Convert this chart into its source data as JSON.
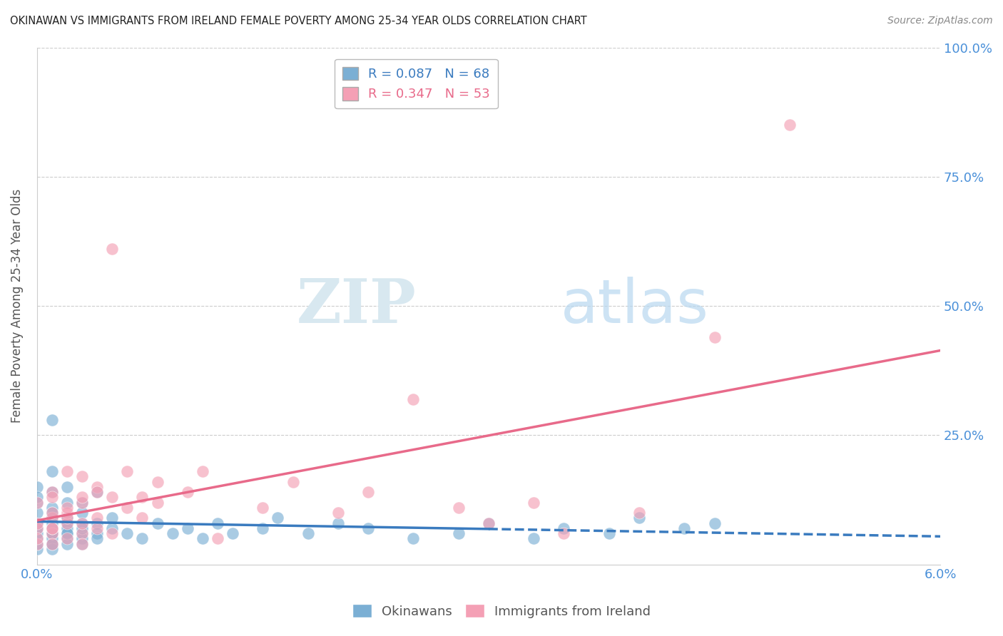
{
  "title": "OKINAWAN VS IMMIGRANTS FROM IRELAND FEMALE POVERTY AMONG 25-34 YEAR OLDS CORRELATION CHART",
  "source": "Source: ZipAtlas.com",
  "ylabel": "Female Poverty Among 25-34 Year Olds",
  "xlim": [
    0.0,
    0.06
  ],
  "ylim": [
    0.0,
    1.0
  ],
  "yticks": [
    0.0,
    0.25,
    0.5,
    0.75,
    1.0
  ],
  "yticklabels_right": [
    "",
    "25.0%",
    "50.0%",
    "75.0%",
    "100.0%"
  ],
  "okinawan_R": 0.087,
  "okinawan_N": 68,
  "ireland_R": 0.347,
  "ireland_N": 53,
  "okinawan_color": "#7bafd4",
  "ireland_color": "#f4a0b5",
  "okinawan_line_color": "#3a7bbf",
  "ireland_line_color": "#e86a8a",
  "background_color": "#ffffff",
  "grid_color": "#cccccc",
  "watermark_zip": "ZIP",
  "watermark_atlas": "atlas",
  "okinawan_x": [
    0.0,
    0.0,
    0.0,
    0.0,
    0.0,
    0.0,
    0.0,
    0.0,
    0.0,
    0.0,
    0.001,
    0.001,
    0.001,
    0.001,
    0.001,
    0.001,
    0.001,
    0.001,
    0.001,
    0.001,
    0.001,
    0.001,
    0.001,
    0.001,
    0.002,
    0.002,
    0.002,
    0.002,
    0.002,
    0.002,
    0.002,
    0.002,
    0.002,
    0.003,
    0.003,
    0.003,
    0.003,
    0.003,
    0.003,
    0.003,
    0.004,
    0.004,
    0.004,
    0.004,
    0.005,
    0.005,
    0.006,
    0.007,
    0.008,
    0.009,
    0.01,
    0.011,
    0.012,
    0.013,
    0.015,
    0.016,
    0.018,
    0.02,
    0.022,
    0.025,
    0.028,
    0.03,
    0.033,
    0.035,
    0.038,
    0.04,
    0.043,
    0.045
  ],
  "okinawan_y": [
    0.05,
    0.03,
    0.08,
    0.12,
    0.15,
    0.04,
    0.06,
    0.1,
    0.13,
    0.07,
    0.04,
    0.06,
    0.09,
    0.14,
    0.18,
    0.05,
    0.08,
    0.11,
    0.03,
    0.07,
    0.06,
    0.1,
    0.28,
    0.04,
    0.06,
    0.08,
    0.12,
    0.05,
    0.07,
    0.15,
    0.04,
    0.09,
    0.06,
    0.06,
    0.08,
    0.12,
    0.05,
    0.07,
    0.1,
    0.04,
    0.08,
    0.06,
    0.14,
    0.05,
    0.07,
    0.09,
    0.06,
    0.05,
    0.08,
    0.06,
    0.07,
    0.05,
    0.08,
    0.06,
    0.07,
    0.09,
    0.06,
    0.08,
    0.07,
    0.05,
    0.06,
    0.08,
    0.05,
    0.07,
    0.06,
    0.09,
    0.07,
    0.08
  ],
  "ireland_x": [
    0.0,
    0.0,
    0.0,
    0.0,
    0.0,
    0.001,
    0.001,
    0.001,
    0.001,
    0.001,
    0.001,
    0.001,
    0.001,
    0.002,
    0.002,
    0.002,
    0.002,
    0.002,
    0.002,
    0.003,
    0.003,
    0.003,
    0.003,
    0.003,
    0.003,
    0.004,
    0.004,
    0.004,
    0.004,
    0.005,
    0.005,
    0.005,
    0.006,
    0.006,
    0.007,
    0.007,
    0.008,
    0.008,
    0.01,
    0.011,
    0.012,
    0.015,
    0.017,
    0.02,
    0.022,
    0.025,
    0.028,
    0.03,
    0.033,
    0.035,
    0.04,
    0.045,
    0.05
  ],
  "ireland_y": [
    0.04,
    0.07,
    0.05,
    0.12,
    0.08,
    0.09,
    0.14,
    0.06,
    0.1,
    0.07,
    0.04,
    0.07,
    0.13,
    0.05,
    0.08,
    0.18,
    0.1,
    0.09,
    0.11,
    0.17,
    0.06,
    0.12,
    0.13,
    0.04,
    0.08,
    0.15,
    0.14,
    0.07,
    0.09,
    0.13,
    0.06,
    0.61,
    0.11,
    0.18,
    0.13,
    0.09,
    0.16,
    0.12,
    0.14,
    0.18,
    0.05,
    0.11,
    0.16,
    0.1,
    0.14,
    0.32,
    0.11,
    0.08,
    0.12,
    0.06,
    0.1,
    0.44,
    0.85
  ]
}
